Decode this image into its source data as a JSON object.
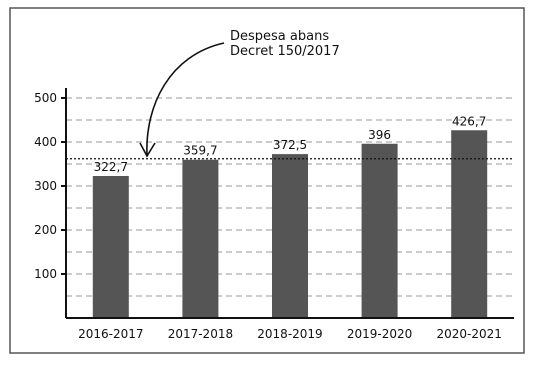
{
  "chart_data": {
    "type": "bar",
    "categories": [
      "2016-2017",
      "2017-2018",
      "2018-2019",
      "2019-2020",
      "2020-2021"
    ],
    "values": [
      322.7,
      359.7,
      372.5,
      396,
      426.7
    ],
    "value_labels": [
      "322,7",
      "359,7",
      "372,5",
      "396",
      "426,7"
    ],
    "y_ticks": [
      100,
      200,
      300,
      400,
      500
    ],
    "ylim": [
      0,
      500
    ],
    "grid": "dashed horizontal",
    "reference_line": {
      "value": 362
    },
    "annotation": {
      "line1": "Despesa abans",
      "line2": "Decret 150/2017"
    },
    "title": "",
    "xlabel": "",
    "ylabel": "",
    "colors": {
      "bar": "#555555",
      "grid": "#9a9a9a",
      "axis": "#111111",
      "frame": "#555555"
    }
  }
}
